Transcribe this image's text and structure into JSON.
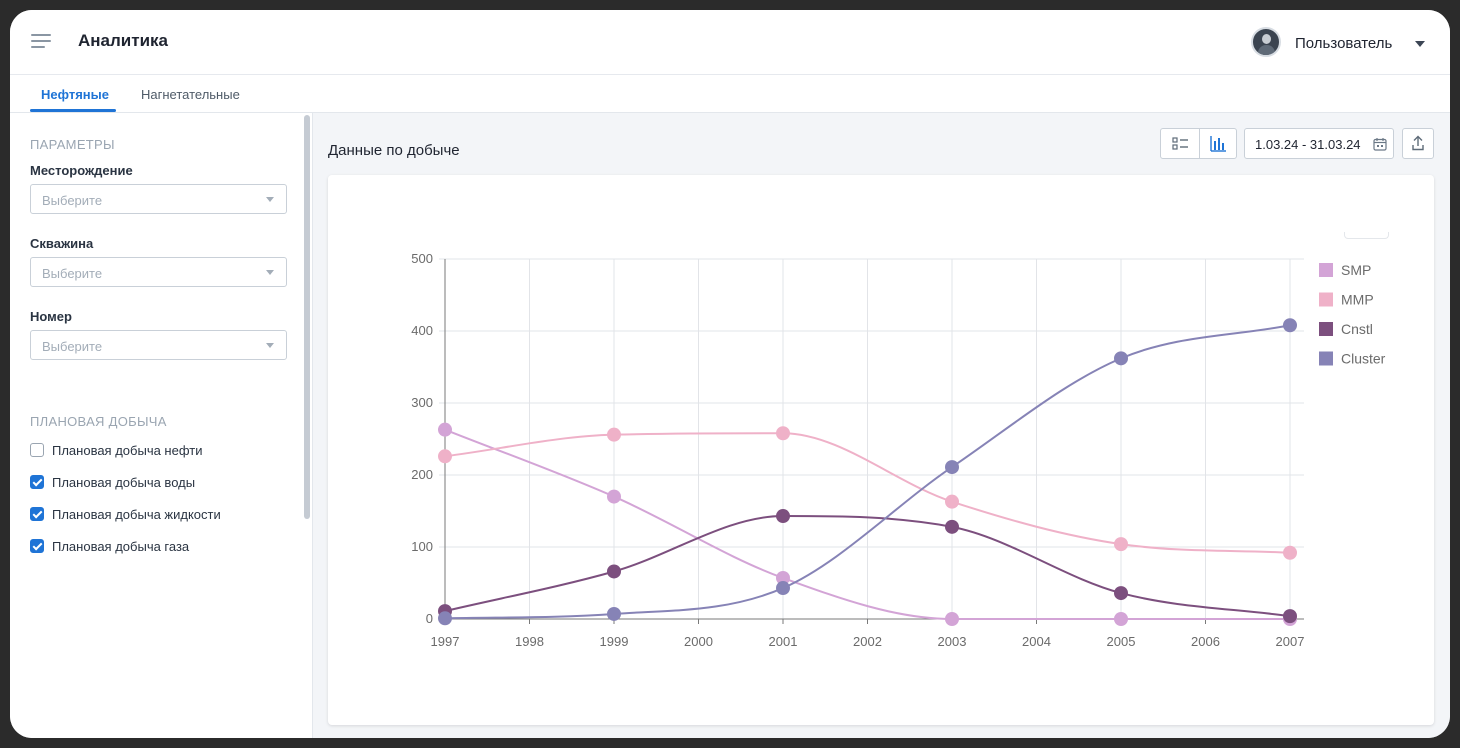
{
  "header": {
    "title": "Аналитика",
    "user_name": "Пользователь"
  },
  "tabs": [
    {
      "label": "Нефтяные",
      "active": true
    },
    {
      "label": "Нагнетательные",
      "active": false
    }
  ],
  "sidebar": {
    "params_title": "ПАРАМЕТРЫ",
    "fields": [
      {
        "label": "Месторождение",
        "placeholder": "Выберите"
      },
      {
        "label": "Скважина",
        "placeholder": "Выберите"
      },
      {
        "label": "Номер",
        "placeholder": "Выберите"
      }
    ],
    "plan_title": "ПЛАНОВАЯ ДОБЫЧА",
    "checkboxes": [
      {
        "label": "Плановая добыча нефти",
        "checked": false
      },
      {
        "label": "Плановая добыча воды",
        "checked": true
      },
      {
        "label": "Плановая добыча жидкости",
        "checked": true
      },
      {
        "label": "Плановая добыча газа",
        "checked": true
      }
    ]
  },
  "main": {
    "title": "Данные по добыче",
    "date_range": "1.03.24 - 31.03.24",
    "icons": {
      "list_view": "list-icon",
      "chart_view": "bar-chart-icon",
      "calendar": "calendar-icon",
      "export": "export-icon"
    },
    "accent_color": "#1f74d6"
  },
  "chart_data": {
    "type": "line",
    "x": [
      1997,
      1999,
      2001,
      2003,
      2005,
      2007
    ],
    "x_ticks": [
      "1997",
      "1998",
      "1999",
      "2000",
      "2001",
      "2002",
      "2003",
      "2004",
      "2005",
      "2006",
      "2007"
    ],
    "y_ticks": [
      "0",
      "100",
      "200",
      "300",
      "400",
      "500"
    ],
    "ylim": [
      0,
      500
    ],
    "xlim": [
      1997,
      2007
    ],
    "grid": true,
    "legend_position": "right",
    "series": [
      {
        "name": "SMP",
        "color": "#d3a4d6",
        "values": [
          263,
          170,
          57,
          0,
          0,
          0
        ]
      },
      {
        "name": "MMP",
        "color": "#efb1c8",
        "values": [
          226,
          256,
          258,
          163,
          104,
          92
        ]
      },
      {
        "name": "Cnstl",
        "color": "#7c4f7e",
        "values": [
          11,
          66,
          143,
          128,
          36,
          4
        ]
      },
      {
        "name": "Cluster",
        "color": "#8683b6",
        "values": [
          1,
          7,
          43,
          211,
          362,
          408
        ]
      }
    ]
  }
}
